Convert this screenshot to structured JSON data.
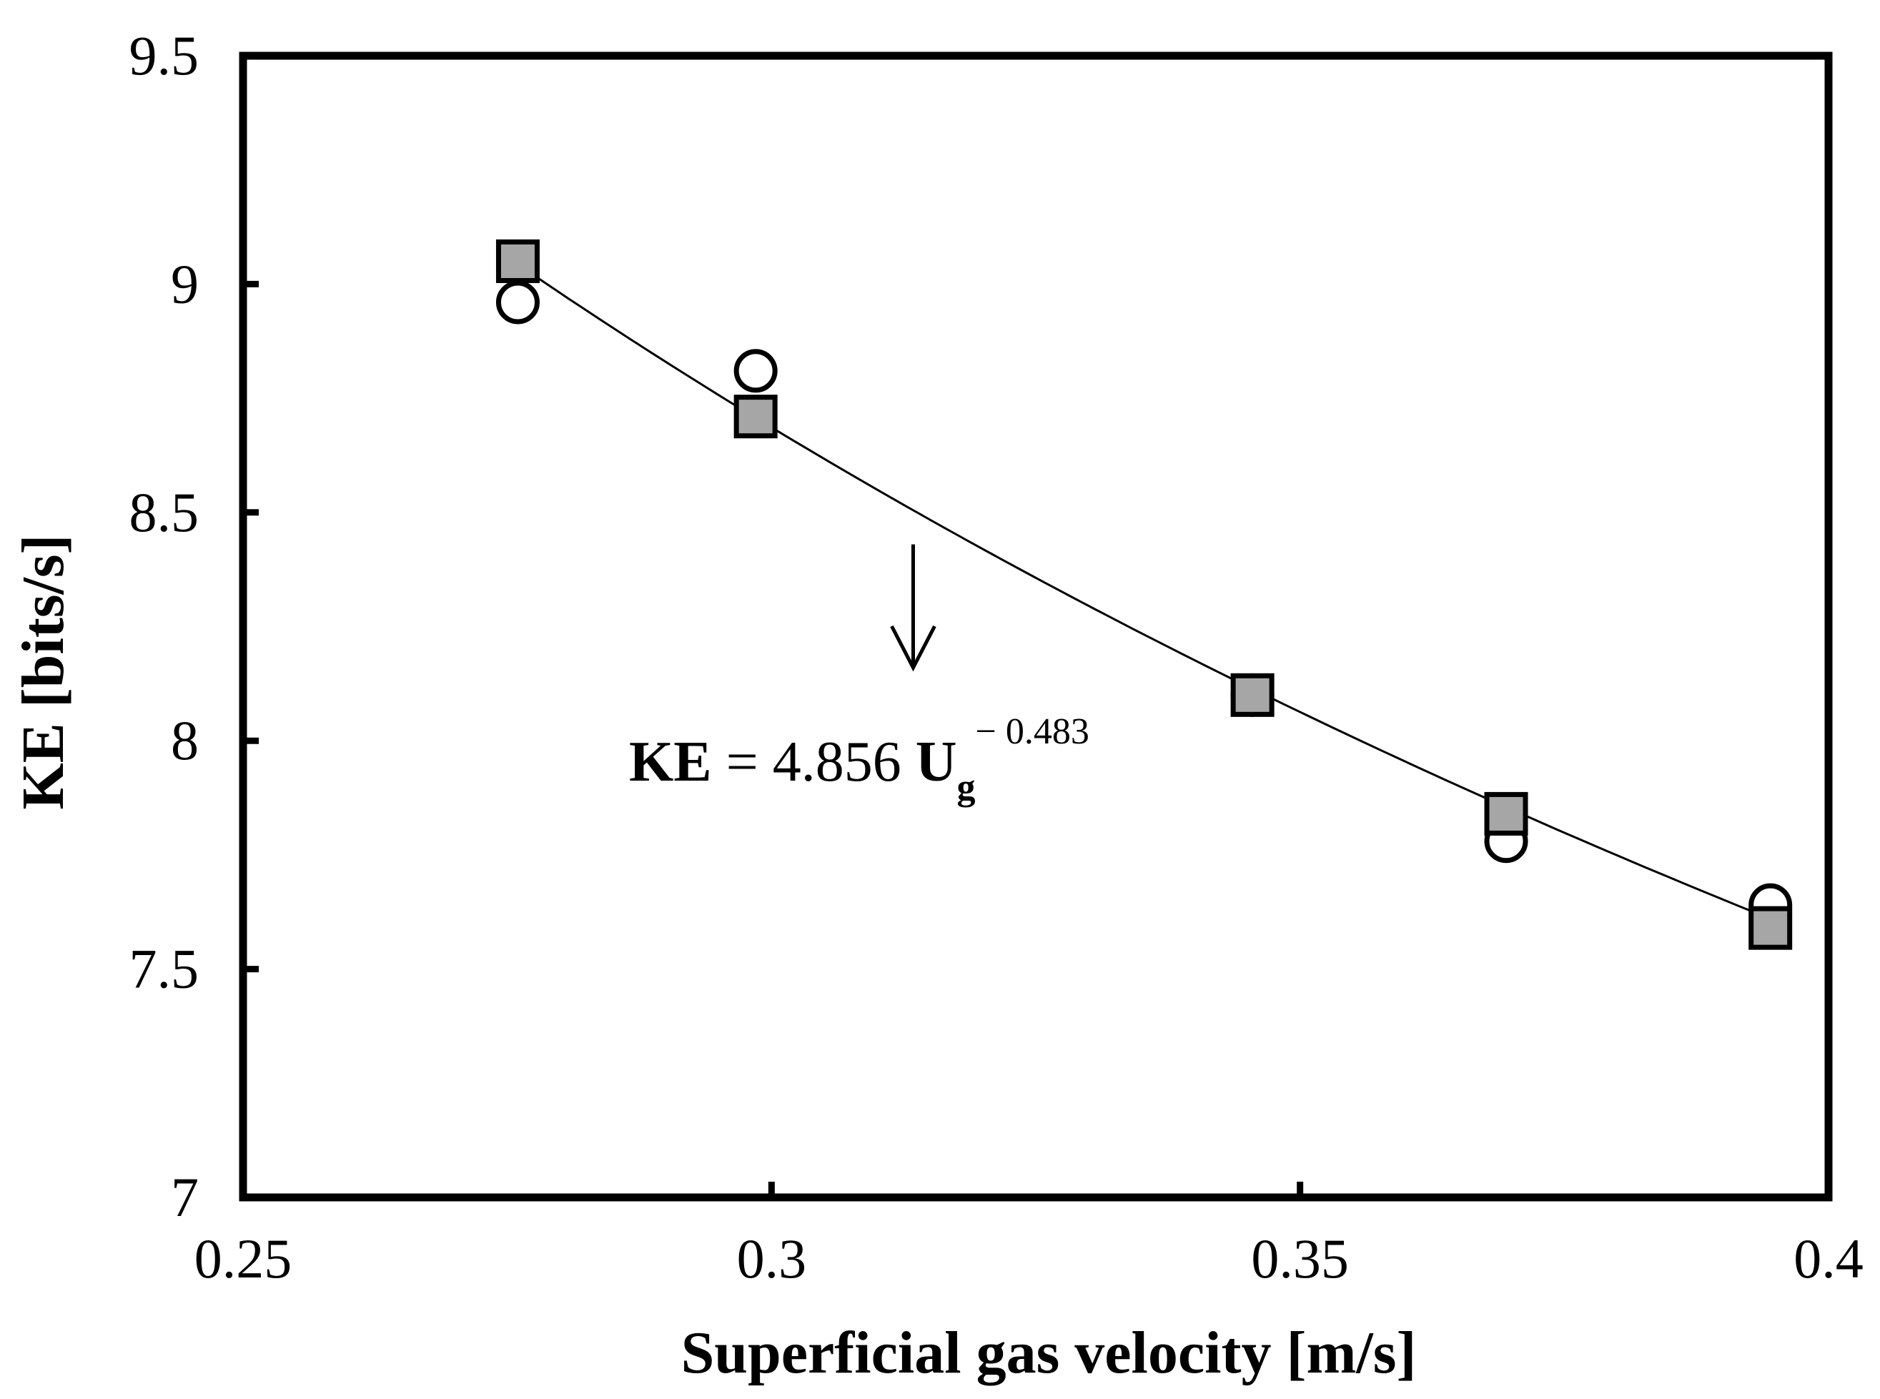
{
  "chart_data": {
    "type": "scatter",
    "title": "",
    "xlabel": "Superficial gas velocity [m/s]",
    "ylabel": "KE [bits/s]",
    "xlim": [
      0.25,
      0.4
    ],
    "ylim": [
      7,
      9.5
    ],
    "x_ticks": [
      "0.25",
      "0.3",
      "0.35",
      "0.4"
    ],
    "y_ticks": [
      "7",
      "7.5",
      "8",
      "8.5",
      "9",
      "9.5"
    ],
    "x_tick_values": [
      0.25,
      0.3,
      0.35,
      0.4
    ],
    "y_tick_values": [
      7,
      7.5,
      8,
      8.5,
      9,
      9.5
    ],
    "grid": false,
    "series": [
      {
        "name": "circles",
        "marker": "open-circle",
        "x": [
          0.276,
          0.2985,
          0.3455,
          0.3695,
          0.3945
        ],
        "y": [
          8.96,
          8.81,
          8.1,
          7.78,
          7.64
        ]
      },
      {
        "name": "squares",
        "marker": "gray-square",
        "x": [
          0.276,
          0.2985,
          0.3455,
          0.3695,
          0.3945
        ],
        "y": [
          9.05,
          8.71,
          8.1,
          7.84,
          7.59
        ]
      }
    ],
    "fit": {
      "name": "power-law fit",
      "coefficient": 4.856,
      "exponent": -0.483,
      "x_range": [
        0.276,
        0.3945
      ]
    },
    "annotation": {
      "lhs": "KE",
      "equals": " = 4.856 ",
      "var": "U",
      "sub": "g",
      "sup": "− 0.483"
    },
    "arrow": {
      "x": 0.3134,
      "y_from": 8.43,
      "y_to": 8.16
    },
    "colors": {
      "axis": "#000000",
      "square_fill": "#a6a6a6",
      "circle_fill": "#ffffff"
    }
  }
}
